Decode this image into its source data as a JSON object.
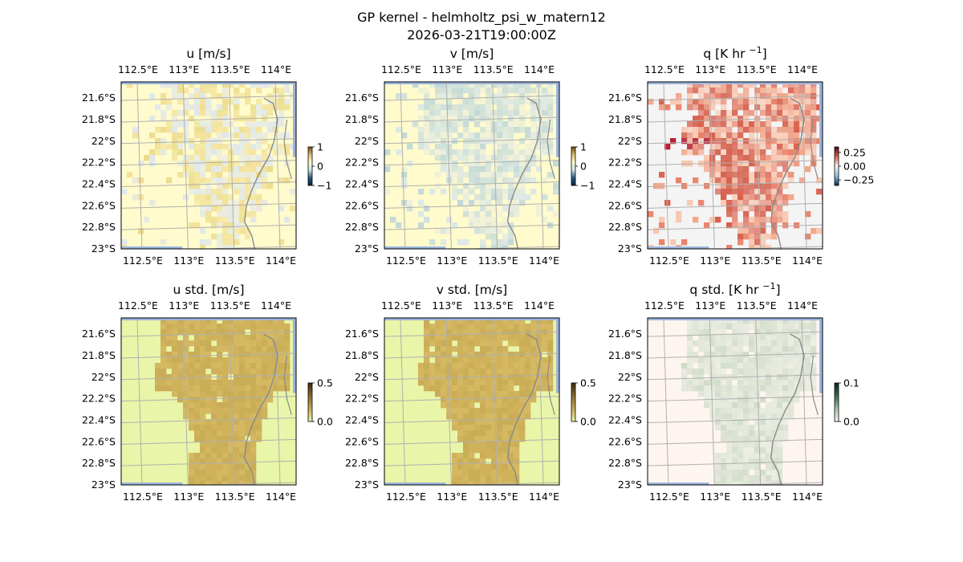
{
  "figure": {
    "title": "GP kernel - helmholtz_psi_w_matern12",
    "subtitle": "2026-03-21T19:00:00Z"
  },
  "colors": {
    "grid": "#b0b0b0",
    "coast": "#8a8a8a",
    "ocean_edge": "#9cb4dd",
    "axes": "#000000"
  },
  "chart_data": [
    {
      "type": "heatmap",
      "title": "u [m/s]",
      "xlim": [
        112.3,
        114.2
      ],
      "ylim": [
        -23.0,
        -21.45
      ],
      "xticks": [
        112.5,
        113.0,
        113.5,
        114.0
      ],
      "xticklabels": [
        "112.5°E",
        "113°E",
        "113.5°E",
        "114°E"
      ],
      "yticks": [
        -21.6,
        -21.8,
        -22.0,
        -22.2,
        -22.4,
        -22.6,
        -22.8,
        -23.0
      ],
      "yticklabels": [
        "21.6°S",
        "21.8°S",
        "22°S",
        "22.2°S",
        "22.4°S",
        "22.6°S",
        "22.8°S",
        "23°S"
      ],
      "background": "#fffbcc",
      "grid": true,
      "colorbar": {
        "ticks": [
          1,
          0,
          -1
        ],
        "ticklabels": [
          "1",
          "0",
          "−1"
        ],
        "colors": [
          "#7a4a10",
          "#d9c070",
          "#fffbcc",
          "#cfe3ea",
          "#2a5a7a",
          "#002244"
        ]
      },
      "field": {
        "style": "mixed",
        "colors": [
          "#f3e29a",
          "#ecdc8e",
          "#e8e8e0",
          "#dfe8ea"
        ],
        "mottle": true,
        "sparse_top": true
      }
    },
    {
      "type": "heatmap",
      "title": "v [m/s]",
      "xlim": [
        112.3,
        114.2
      ],
      "ylim": [
        -23.0,
        -21.45
      ],
      "xticks": [
        112.5,
        113.0,
        113.5,
        114.0
      ],
      "xticklabels": [
        "112.5°E",
        "113°E",
        "113.5°E",
        "114°E"
      ],
      "yticks": [
        -21.6,
        -21.8,
        -22.0,
        -22.2,
        -22.4,
        -22.6,
        -22.8,
        -23.0
      ],
      "yticklabels": [
        "21.6°S",
        "21.8°S",
        "22°S",
        "22.2°S",
        "22.4°S",
        "22.6°S",
        "22.8°S",
        "23°S"
      ],
      "background": "#fffbcc",
      "grid": true,
      "colorbar": {
        "ticks": [
          1,
          0,
          -1
        ],
        "ticklabels": [
          "1",
          "0",
          "−1"
        ],
        "colors": [
          "#7a4a10",
          "#d9c070",
          "#fffbcc",
          "#cfe3ea",
          "#2a5a7a",
          "#002244"
        ]
      },
      "field": {
        "style": "mixed",
        "colors": [
          "#dde8e4",
          "#cfe0dc",
          "#c3d9d8",
          "#f0f0d8"
        ],
        "mottle": true,
        "sparse_top": false
      }
    },
    {
      "type": "heatmap",
      "title": "q [K hr −1]",
      "title_main": "q [K hr ",
      "title_sup": "−1",
      "title_end": "]",
      "xlim": [
        112.3,
        114.2
      ],
      "ylim": [
        -23.0,
        -21.45
      ],
      "xticks": [
        112.5,
        113.0,
        113.5,
        114.0
      ],
      "xticklabels": [
        "112.5°E",
        "113°E",
        "113.5°E",
        "114°E"
      ],
      "yticks": [
        -21.6,
        -21.8,
        -22.0,
        -22.2,
        -22.4,
        -22.6,
        -22.8,
        -23.0
      ],
      "yticklabels": [
        "21.6°S",
        "21.8°S",
        "22°S",
        "22.2°S",
        "22.4°S",
        "22.6°S",
        "22.8°S",
        "23°S"
      ],
      "background": "#f4f4f4",
      "grid": true,
      "colorbar": {
        "ticks": [
          0.25,
          0.0,
          -0.25
        ],
        "ticklabels": [
          "0.25",
          "0.00",
          "−0.25"
        ],
        "colors": [
          "#67001f",
          "#d6604d",
          "#f7f7f7",
          "#92c5de",
          "#053061"
        ]
      },
      "field": {
        "style": "red",
        "colors": [
          "#f9c7b0",
          "#f2a488",
          "#e8836a",
          "#d6604d"
        ],
        "hot": "#b2182b",
        "mottle": true,
        "sparse_top": false
      }
    },
    {
      "type": "heatmap",
      "title": "u std. [m/s]",
      "xlim": [
        112.3,
        114.2
      ],
      "ylim": [
        -23.0,
        -21.45
      ],
      "xticks": [
        112.5,
        113.0,
        113.5,
        114.0
      ],
      "xticklabels": [
        "112.5°E",
        "113°E",
        "113.5°E",
        "114°E"
      ],
      "yticks": [
        -21.6,
        -21.8,
        -22.0,
        -22.2,
        -22.4,
        -22.6,
        -22.8,
        -23.0
      ],
      "yticklabels": [
        "21.6°S",
        "21.8°S",
        "22°S",
        "22.2°S",
        "22.4°S",
        "22.6°S",
        "22.8°S",
        "23°S"
      ],
      "background": "#e9f5a8",
      "grid": true,
      "colorbar": {
        "ticks": [
          0.5,
          0.0
        ],
        "ticklabels": [
          "0.5",
          "0.0"
        ],
        "colors": [
          "#3a2a10",
          "#8a6a30",
          "#c8aa58",
          "#e9f5a8"
        ]
      },
      "field": {
        "style": "solid",
        "colors": [
          "#cfb25a",
          "#c9ad57",
          "#d4b862"
        ],
        "mottle": false,
        "sparse_top": false
      }
    },
    {
      "type": "heatmap",
      "title": "v std. [m/s]",
      "xlim": [
        112.3,
        114.2
      ],
      "ylim": [
        -23.0,
        -21.45
      ],
      "xticks": [
        112.5,
        113.0,
        113.5,
        114.0
      ],
      "xticklabels": [
        "112.5°E",
        "113°E",
        "113.5°E",
        "114°E"
      ],
      "yticks": [
        -21.6,
        -21.8,
        -22.0,
        -22.2,
        -22.4,
        -22.6,
        -22.8,
        -23.0
      ],
      "yticklabels": [
        "21.6°S",
        "21.8°S",
        "22°S",
        "22.2°S",
        "22.4°S",
        "22.6°S",
        "22.8°S",
        "23°S"
      ],
      "background": "#e9f5a8",
      "grid": true,
      "colorbar": {
        "ticks": [
          0.5,
          0.0
        ],
        "ticklabels": [
          "0.5",
          "0.0"
        ],
        "colors": [
          "#3a2a10",
          "#8a6a30",
          "#c8aa58",
          "#e9f5a8"
        ]
      },
      "field": {
        "style": "solid",
        "colors": [
          "#cfb25a",
          "#c9ad57",
          "#d4b862"
        ],
        "mottle": false,
        "sparse_top": false
      }
    },
    {
      "type": "heatmap",
      "title": "q std. [K hr −1]",
      "title_main": "q std. [K hr ",
      "title_sup": "−1",
      "title_end": "]",
      "xlim": [
        112.3,
        114.2
      ],
      "ylim": [
        -23.0,
        -21.45
      ],
      "xticks": [
        112.5,
        113.0,
        113.5,
        114.0
      ],
      "xticklabels": [
        "112.5°E",
        "113°E",
        "113.5°E",
        "114°E"
      ],
      "yticks": [
        -21.6,
        -21.8,
        -22.0,
        -22.2,
        -22.4,
        -22.6,
        -22.8,
        -23.0
      ],
      "yticklabels": [
        "21.6°S",
        "21.8°S",
        "22°S",
        "22.2°S",
        "22.4°S",
        "22.6°S",
        "22.8°S",
        "23°S"
      ],
      "background": "#fff5f0",
      "grid": true,
      "colorbar": {
        "ticks": [
          0.1,
          0.0
        ],
        "ticklabels": [
          "0.1",
          "0.0"
        ],
        "colors": [
          "#0a2a1a",
          "#3a6a50",
          "#a8c4ac",
          "#fff5f0"
        ]
      },
      "field": {
        "style": "solid",
        "colors": [
          "#e2e8dc",
          "#d8e2d2",
          "#cfdcc8"
        ],
        "mottle": true,
        "sparse_top": false
      }
    }
  ]
}
